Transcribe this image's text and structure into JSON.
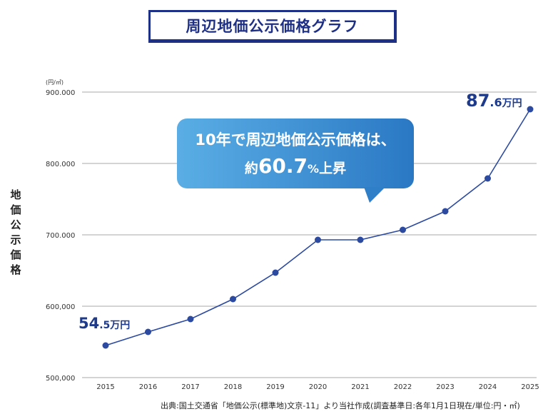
{
  "title": "周辺地価公示価格グラフ",
  "y_axis_title": "地価公示価格",
  "unit_label": "(円/㎡)",
  "callout": {
    "line1": "10年で周辺地価公示価格は、",
    "line2_prefix": "約",
    "line2_number": "60.7",
    "line2_percent": "%",
    "line2_suffix": "上昇"
  },
  "start_label": {
    "number": "54",
    "decimal": ".5",
    "unit": "万円"
  },
  "end_label": {
    "number": "87",
    "decimal": ".6",
    "unit": "万円"
  },
  "source": "出典:国土交通省「地価公示(標準地)文京-11」より当社作成(調査基準日:各年1月1日現在/単位:円・㎡)",
  "chart_data": {
    "type": "line",
    "title": "周辺地価公示価格グラフ",
    "ylabel": "地価公示価格",
    "y_unit": "(円/㎡)",
    "x": [
      "2015",
      "2016",
      "2017",
      "2018",
      "2019",
      "2020",
      "2021",
      "2022",
      "2023",
      "2024",
      "2025"
    ],
    "series": [
      {
        "values": [
          545000,
          564000,
          582000,
          610000,
          647000,
          693000,
          693000,
          707000,
          733000,
          779000,
          876000
        ]
      }
    ],
    "ylim": [
      500000,
      900000
    ],
    "y_ticks": [
      500000,
      600000,
      700000,
      800000,
      900000
    ],
    "y_tick_labels": [
      "500,000",
      "600,000",
      "700.000",
      "800.000",
      "900.000"
    ],
    "grid": true,
    "line_color": "#2b4aa0",
    "callout_color": "#3d8fd6"
  }
}
